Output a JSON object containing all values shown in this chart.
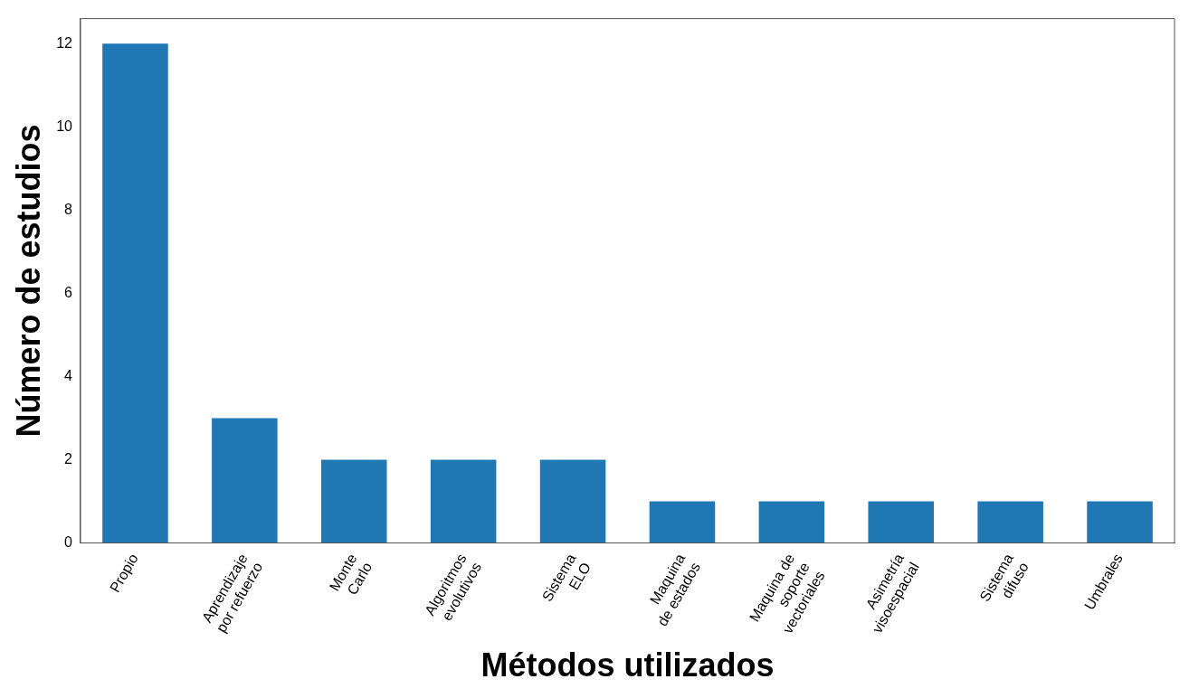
{
  "chart_data": {
    "type": "bar",
    "xlabel": "Métodos utilizados",
    "ylabel": "Número de estudios",
    "categories": [
      "Propio",
      "Aprendizaje\npor refuerzo",
      "Monte\nCarlo",
      "Algoritmos\nevolutivos",
      "Sistema\nELO",
      "Maquina\nde estados",
      "Maquina de\nsoporte\nvectoriales",
      "Asimetría\nvisoespacial",
      "Sistema\ndifuso",
      "Umbrales"
    ],
    "values": [
      12,
      3,
      2,
      2,
      2,
      1,
      1,
      1,
      1,
      1
    ],
    "color": "#1f77b4",
    "ylim": [
      0,
      12.6
    ],
    "yticks": [
      0,
      2,
      4,
      6,
      8,
      10,
      12
    ],
    "grid": false,
    "legend": false
  }
}
